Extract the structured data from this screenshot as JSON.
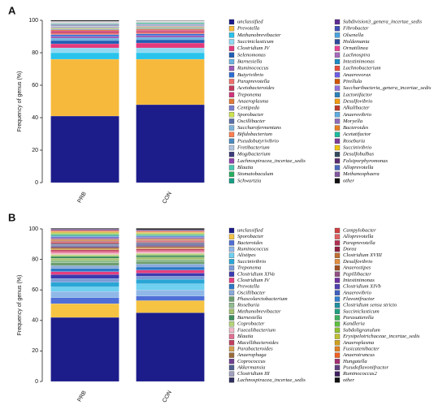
{
  "chart_data": [
    {
      "type": "bar",
      "stacked": true,
      "label": "A",
      "ylabel": "Frequency of genus (%)",
      "categories": [
        "PRB",
        "CON"
      ],
      "ylim": [
        0,
        100
      ],
      "yticks": [
        0,
        20,
        40,
        60,
        80,
        100
      ],
      "series": [
        {
          "name": "unclassified",
          "color": "#1c1c8a",
          "values": [
            41,
            48
          ]
        },
        {
          "name": "Prevotella",
          "color": "#f6b93b",
          "values": [
            35,
            28
          ]
        },
        {
          "name": "Methanobrevibacter",
          "color": "#29c3ec",
          "values": [
            4,
            4
          ]
        },
        {
          "name": "Succiniclasticum",
          "color": "#8fd9f2",
          "values": [
            3,
            3
          ]
        },
        {
          "name": "Clostridium IV",
          "color": "#e23a7d",
          "values": [
            2.5,
            3
          ]
        },
        {
          "name": "Selenomonas",
          "color": "#1f5fb5",
          "values": [
            2,
            2
          ]
        },
        {
          "name": "Barnesiella",
          "color": "#6db3e0",
          "values": [
            1.5,
            1.5
          ]
        },
        {
          "name": "Ruminococcus",
          "color": "#9b59b6",
          "values": [
            1.2,
            1.2
          ]
        },
        {
          "name": "Butyrivibrio",
          "color": "#2a6dd4",
          "values": [
            1,
            1
          ]
        },
        {
          "name": "Paraprevotella",
          "color": "#ef6f6c",
          "values": [
            0.8,
            0.8
          ]
        },
        {
          "name": "Acetobacteroides",
          "color": "#c23b5b",
          "values": [
            0.8,
            0.7
          ]
        },
        {
          "name": "Treponema",
          "color": "#d0347a",
          "values": [
            0.7,
            0.7
          ]
        },
        {
          "name": "Anaeroplasma",
          "color": "#e07a3a",
          "values": [
            0.6,
            0.6
          ]
        },
        {
          "name": "Centipeda",
          "color": "#7a7fcf",
          "values": [
            0.5,
            0.5
          ]
        },
        {
          "name": "Sporobacter",
          "color": "#cde34f",
          "values": [
            0.5,
            0.5
          ]
        },
        {
          "name": "Oscillibacter",
          "color": "#5a6fa8",
          "values": [
            0.4,
            0.4
          ]
        },
        {
          "name": "Saccharofermentans",
          "color": "#7fb4d9",
          "values": [
            0.3,
            0.3
          ]
        },
        {
          "name": "Bifidobacterium",
          "color": "#ff7f50",
          "values": [
            0.3,
            0.3
          ]
        },
        {
          "name": "Pseudobutyrivibrio",
          "color": "#4b8bbe",
          "values": [
            0.3,
            0.3
          ]
        },
        {
          "name": "Fretibacterium",
          "color": "#b0c4de",
          "values": [
            0.3,
            0.3
          ]
        },
        {
          "name": "Mogibacterium",
          "color": "#3c3c7a",
          "values": [
            0.3,
            0.3
          ]
        },
        {
          "name": "Lachnospiracea_incertae_sedis",
          "color": "#8e44ad",
          "values": [
            0.3,
            0.3
          ]
        },
        {
          "name": "Blautia",
          "color": "#48c9b0",
          "values": [
            0.3,
            0.3
          ]
        },
        {
          "name": "Stomatobaculum",
          "color": "#27ae60",
          "values": [
            0.3,
            0.3
          ]
        },
        {
          "name": "Schwartzia",
          "color": "#16a085",
          "values": [
            0.3,
            0.3
          ]
        },
        {
          "name": "Subdivision3_genera_incertae_sedis",
          "color": "#5e2d91",
          "values": [
            0.05,
            0.05
          ]
        },
        {
          "name": "Fibrobacter",
          "color": "#3f51b5",
          "values": [
            0.05,
            0.05
          ]
        },
        {
          "name": "Olsenella",
          "color": "#4aa3df",
          "values": [
            0.05,
            0.05
          ]
        },
        {
          "name": "Holdemania",
          "color": "#2e4a9c",
          "values": [
            0.05,
            0.05
          ]
        },
        {
          "name": "Ornatilinea",
          "color": "#e84393",
          "values": [
            0.05,
            0.05
          ]
        },
        {
          "name": "Lachnospira",
          "color": "#a569bd",
          "values": [
            0.05,
            0.05
          ]
        },
        {
          "name": "Intestinimonas",
          "color": "#1e8bc3",
          "values": [
            0.05,
            0.05
          ]
        },
        {
          "name": "Lachnobacterium",
          "color": "#e74c3c",
          "values": [
            0.05,
            0.05
          ]
        },
        {
          "name": "Anaerovorax",
          "color": "#6c5ce7",
          "values": [
            0.05,
            0.05
          ]
        },
        {
          "name": "Pirellula",
          "color": "#d35400",
          "values": [
            0.05,
            0.05
          ]
        },
        {
          "name": "Saccharibacteria_genera_incertae_sedis",
          "color": "#9370db",
          "values": [
            0.05,
            0.05
          ]
        },
        {
          "name": "Lactonifactor",
          "color": "#2980b9",
          "values": [
            0.05,
            0.05
          ]
        },
        {
          "name": "Desulfovibrio",
          "color": "#f39c12",
          "values": [
            0.05,
            0.05
          ]
        },
        {
          "name": "Alkalibacter",
          "color": "#c0392b",
          "values": [
            0.05,
            0.05
          ]
        },
        {
          "name": "Anaerovibrio",
          "color": "#5dade2",
          "values": [
            0.05,
            0.05
          ]
        },
        {
          "name": "Moryella",
          "color": "#8e6bb8",
          "values": [
            0.05,
            0.05
          ]
        },
        {
          "name": "Bacteroides",
          "color": "#e67e22",
          "values": [
            0.05,
            0.05
          ]
        },
        {
          "name": "Acetatifactor",
          "color": "#1abc9c",
          "values": [
            0.05,
            0.05
          ]
        },
        {
          "name": "Roseburia",
          "color": "#7d3c98",
          "values": [
            0.05,
            0.05
          ]
        },
        {
          "name": "Succinivibrio",
          "color": "#f1c40f",
          "values": [
            0.05,
            0.05
          ]
        },
        {
          "name": "Desulfobulbus",
          "color": "#34495e",
          "values": [
            0.05,
            0.05
          ]
        },
        {
          "name": "Falsiporphyromonas",
          "color": "#5b2c6f",
          "values": [
            0.05,
            0.05
          ]
        },
        {
          "name": "Alloprevotella",
          "color": "#4a69bd",
          "values": [
            0.05,
            0.05
          ]
        },
        {
          "name": "Methanosphaera",
          "color": "#82589f",
          "values": [
            0.05,
            0.05
          ]
        },
        {
          "name": "other",
          "color": "#111111",
          "values": [
            0.6,
            0.2
          ]
        }
      ]
    },
    {
      "type": "bar",
      "stacked": true,
      "label": "B",
      "ylabel": "Frequency of genus (%)",
      "categories": [
        "PRB",
        "CON"
      ],
      "ylim": [
        0,
        100
      ],
      "yticks": [
        0,
        20,
        40,
        60,
        80,
        100
      ],
      "series": [
        {
          "name": "unclassified",
          "color": "#1c1c8a",
          "values": [
            42,
            45
          ]
        },
        {
          "name": "Sporobacter",
          "color": "#f6c342",
          "values": [
            9,
            8
          ]
        },
        {
          "name": "Bacteroides",
          "color": "#4f6fd6",
          "values": [
            4,
            3
          ]
        },
        {
          "name": "Ruminococcus",
          "color": "#8fb8e8",
          "values": [
            4,
            4
          ]
        },
        {
          "name": "Alistipes",
          "color": "#6fd0f0",
          "values": [
            3,
            4
          ]
        },
        {
          "name": "Succinivibrio",
          "color": "#2aa6d6",
          "values": [
            3,
            3
          ]
        },
        {
          "name": "Treponema",
          "color": "#7b9bd6",
          "values": [
            2.5,
            2
          ]
        },
        {
          "name": "Clostridium XIVa",
          "color": "#3b3bb0",
          "values": [
            2.5,
            2
          ]
        },
        {
          "name": "Clostridium IV",
          "color": "#e5407e",
          "values": [
            2,
            2
          ]
        },
        {
          "name": "Prevotella",
          "color": "#2c78c8",
          "values": [
            2,
            2
          ]
        },
        {
          "name": "Oscillibacter",
          "color": "#89a9d9",
          "values": [
            2,
            2
          ]
        },
        {
          "name": "Phascolarctobacterium",
          "color": "#6e9e6e",
          "values": [
            1.8,
            1.5
          ]
        },
        {
          "name": "Roseburia",
          "color": "#8fbc8f",
          "values": [
            1.5,
            1.5
          ]
        },
        {
          "name": "Methanobrevibacter",
          "color": "#a3c16f",
          "values": [
            1.5,
            1.5
          ]
        },
        {
          "name": "Barnesiella",
          "color": "#3e8e5e",
          "values": [
            1.2,
            1.2
          ]
        },
        {
          "name": "Coprobacter",
          "color": "#b5d47a",
          "values": [
            1.2,
            1.2
          ]
        },
        {
          "name": "Faecalibacterium",
          "color": "#f0b8c8",
          "values": [
            1,
            1
          ]
        },
        {
          "name": "Blautia",
          "color": "#e07090",
          "values": [
            1,
            1
          ]
        },
        {
          "name": "Macellibacteroides",
          "color": "#c04060",
          "values": [
            1,
            1
          ]
        },
        {
          "name": "Parabacteroides",
          "color": "#d5a050",
          "values": [
            0.8,
            0.8
          ]
        },
        {
          "name": "Anaerophaga",
          "color": "#9a6a3a",
          "values": [
            0.8,
            0.8
          ]
        },
        {
          "name": "Coprococcus",
          "color": "#704090",
          "values": [
            0.7,
            0.7
          ]
        },
        {
          "name": "Akkermansia",
          "color": "#506090",
          "values": [
            0.7,
            0.7
          ]
        },
        {
          "name": "Clostridium III",
          "color": "#a0a0c0",
          "values": [
            0.6,
            0.6
          ]
        },
        {
          "name": "Lachnospiracea_incertae_sedis",
          "color": "#303060",
          "values": [
            0.6,
            0.6
          ]
        },
        {
          "name": "Campylobacter",
          "color": "#d04040",
          "values": [
            0.4,
            0.35
          ]
        },
        {
          "name": "Alloprevotella",
          "color": "#e06060",
          "values": [
            0.4,
            0.35
          ]
        },
        {
          "name": "Paraprevotella",
          "color": "#b03050",
          "values": [
            0.4,
            0.35
          ]
        },
        {
          "name": "Dorea",
          "color": "#902040",
          "values": [
            0.4,
            0.35
          ]
        },
        {
          "name": "Clostridium XVIII",
          "color": "#c07030",
          "values": [
            0.4,
            0.35
          ]
        },
        {
          "name": "Desulfovibrio",
          "color": "#e09040",
          "values": [
            0.4,
            0.35
          ]
        },
        {
          "name": "Anaerostipes",
          "color": "#a05020",
          "values": [
            0.4,
            0.35
          ]
        },
        {
          "name": "Papillibacter",
          "color": "#905080",
          "values": [
            0.4,
            0.35
          ]
        },
        {
          "name": "Intestinimonas",
          "color": "#7030a0",
          "values": [
            0.4,
            0.35
          ]
        },
        {
          "name": "Clostridium XIVb",
          "color": "#5040b0",
          "values": [
            0.4,
            0.35
          ]
        },
        {
          "name": "Anaerovibrio",
          "color": "#4060c0",
          "values": [
            0.4,
            0.35
          ]
        },
        {
          "name": "Flavonifractor",
          "color": "#3080d0",
          "values": [
            0.4,
            0.35
          ]
        },
        {
          "name": "Clostridium sensu stricto",
          "color": "#2090a0",
          "values": [
            0.4,
            0.35
          ]
        },
        {
          "name": "Succiniclasticum",
          "color": "#20a080",
          "values": [
            0.4,
            0.35
          ]
        },
        {
          "name": "Parasutterella",
          "color": "#40b060",
          "values": [
            0.4,
            0.35
          ]
        },
        {
          "name": "Kandleria",
          "color": "#60c040",
          "values": [
            0.4,
            0.35
          ]
        },
        {
          "name": "Subdoligranulum",
          "color": "#90c030",
          "values": [
            0.4,
            0.35
          ]
        },
        {
          "name": "Erysipelotrichaceae_incertae_sedis",
          "color": "#c0c030",
          "values": [
            0.4,
            0.35
          ]
        },
        {
          "name": "Anaeroplasma",
          "color": "#d0a020",
          "values": [
            0.4,
            0.35
          ]
        },
        {
          "name": "Fusicatenibacter",
          "color": "#e08020",
          "values": [
            0.4,
            0.35
          ]
        },
        {
          "name": "Anaerotruncus",
          "color": "#f06020",
          "values": [
            0.4,
            0.35
          ]
        },
        {
          "name": "Hungatella",
          "color": "#a03070",
          "values": [
            0.4,
            0.35
          ]
        },
        {
          "name": "Pseudoflavonifractor",
          "color": "#604080",
          "values": [
            0.4,
            0.35
          ]
        },
        {
          "name": "Ruminococcus2",
          "color": "#402060",
          "values": [
            0.4,
            0.35
          ]
        },
        {
          "name": "other",
          "color": "#111111",
          "values": [
            0.4,
            0.85
          ]
        }
      ]
    }
  ]
}
